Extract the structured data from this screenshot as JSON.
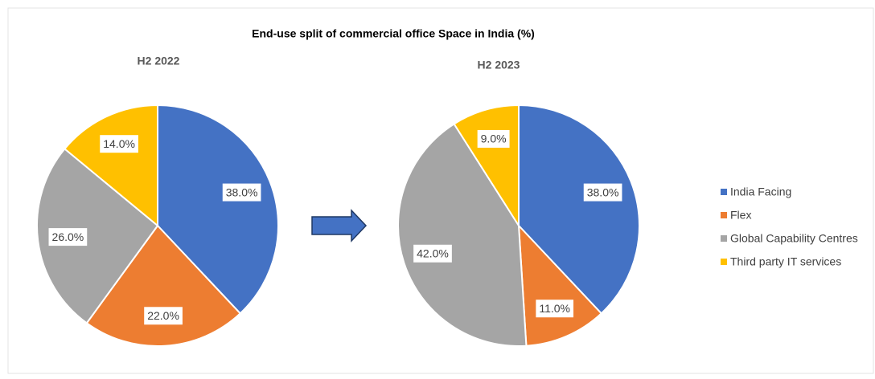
{
  "title": "End-use split of commercial office Space in India (%)",
  "chart_data": [
    {
      "type": "pie",
      "title": "H2 2022",
      "categories": [
        "India Facing",
        "Flex",
        "Global Capability Centres",
        "Third party IT services"
      ],
      "values": [
        38,
        22,
        26,
        14
      ],
      "value_labels": [
        "38.0%",
        "22.0%",
        "26.0%",
        "14.0%"
      ],
      "colors": [
        "#4472c4",
        "#ed7d31",
        "#a5a5a5",
        "#ffc000"
      ],
      "legend": "right"
    },
    {
      "type": "pie",
      "title": "H2 2023",
      "categories": [
        "India Facing",
        "Flex",
        "Global Capability Centres",
        "Third party IT services"
      ],
      "values": [
        38,
        11,
        42,
        9
      ],
      "value_labels": [
        "38.0%",
        "11.0%",
        "42.0%",
        "9.0%"
      ],
      "colors": [
        "#4472c4",
        "#ed7d31",
        "#a5a5a5",
        "#ffc000"
      ],
      "legend": "right"
    }
  ]
}
